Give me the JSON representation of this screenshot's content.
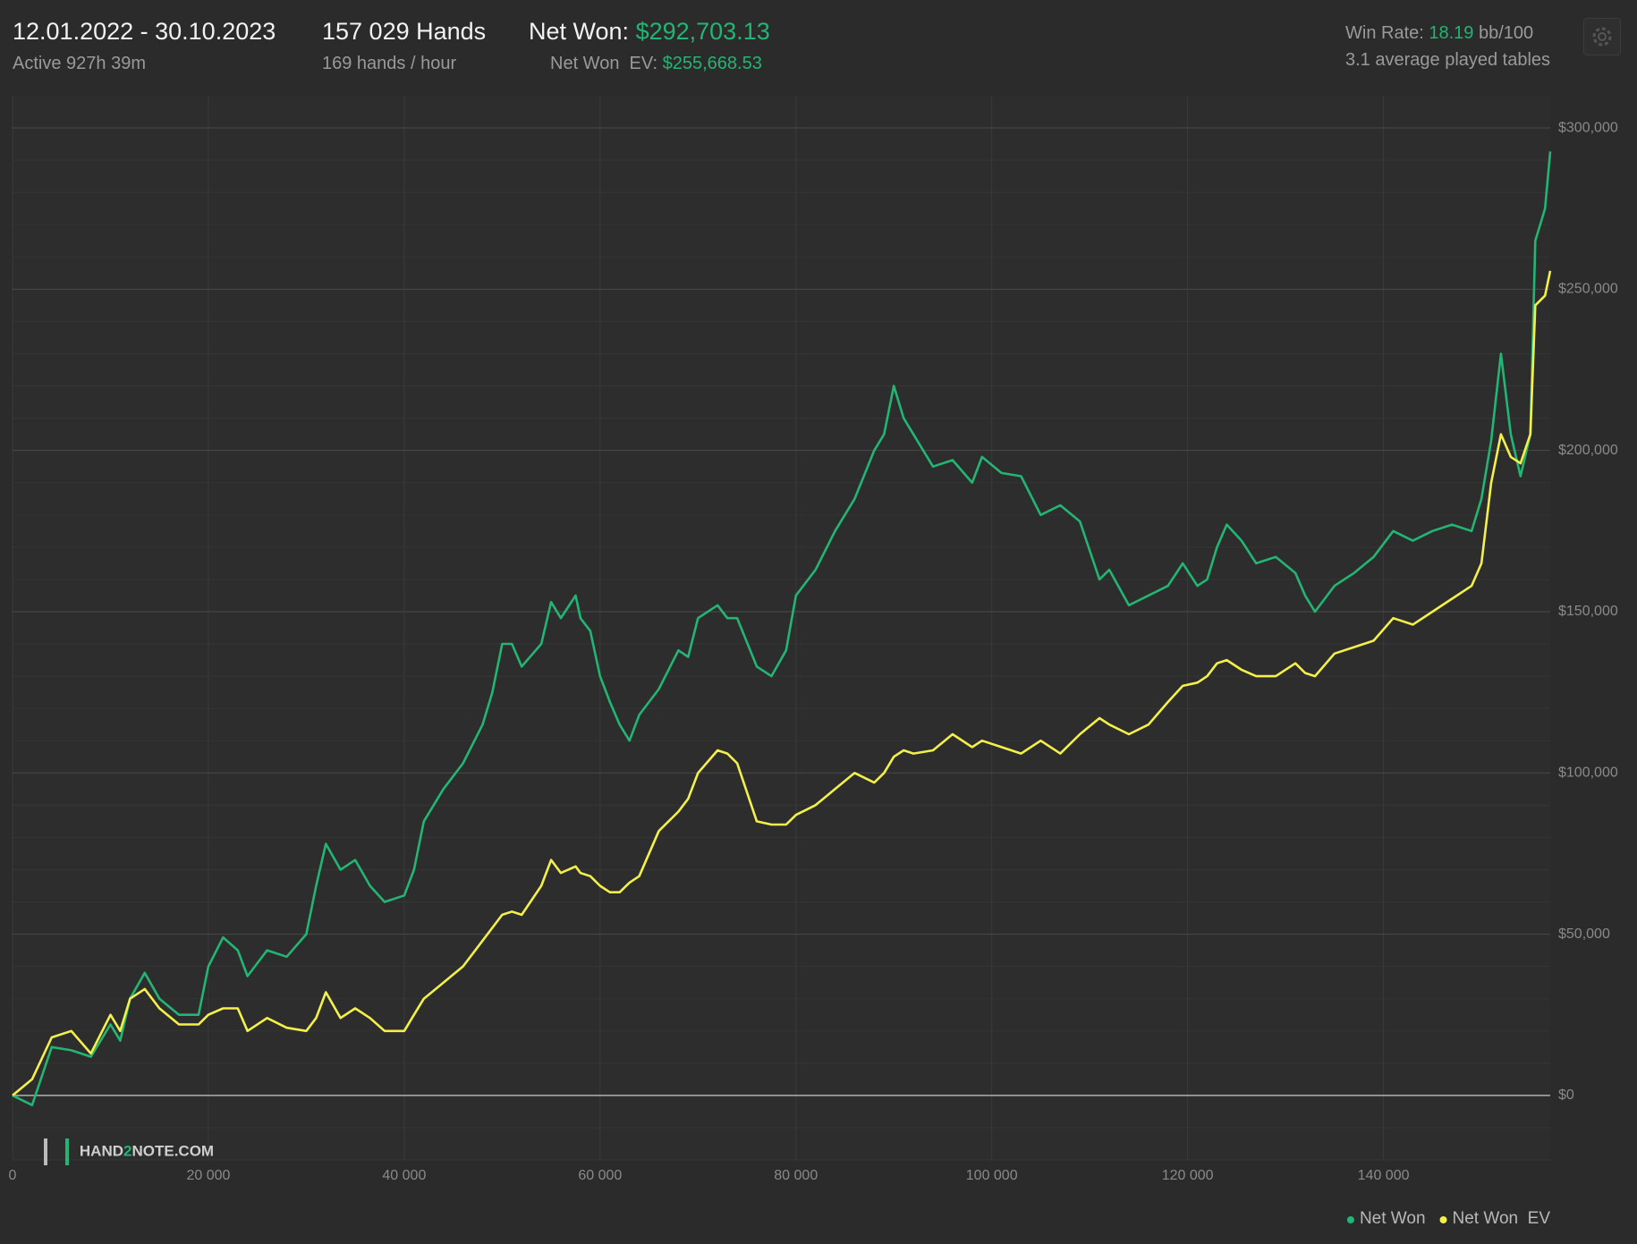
{
  "header": {
    "date_range": "12.01.2022 - 30.10.2023",
    "active": "Active 927h 39m",
    "hands": "157 029 Hands",
    "hands_per_hour": "169 hands / hour",
    "net_won_label": "Net Won:",
    "net_won_value": "$292,703.13",
    "net_won_ev_label": "Net Won  EV:",
    "net_won_ev_value": "$255,668.53",
    "win_rate_label": "Win Rate:",
    "win_rate_value": "18.19",
    "win_rate_unit": "bb/100",
    "tables": "3.1 average played tables",
    "logo": [
      "HAND",
      "2",
      "NOTE.COM"
    ]
  },
  "chart_data": {
    "type": "line",
    "x": [
      0,
      2000,
      4000,
      6000,
      8000,
      10000,
      11000,
      12000,
      13500,
      15000,
      17000,
      19000,
      20000,
      21500,
      23000,
      24000,
      26000,
      28000,
      30000,
      31000,
      32000,
      33500,
      35000,
      36500,
      38000,
      40000,
      41000,
      42000,
      44000,
      46000,
      48000,
      49000,
      50000,
      51000,
      52000,
      54000,
      55000,
      56000,
      57500,
      58000,
      59000,
      60000,
      61000,
      62000,
      63000,
      64000,
      66000,
      68000,
      69000,
      70000,
      72000,
      73000,
      74000,
      76000,
      77500,
      79000,
      80000,
      82000,
      84000,
      86000,
      88000,
      89000,
      90000,
      91000,
      92000,
      94000,
      96000,
      98000,
      99000,
      101000,
      103000,
      105000,
      107000,
      109000,
      111000,
      112000,
      114000,
      116000,
      118000,
      119500,
      121000,
      122000,
      123000,
      124000,
      125500,
      127000,
      129000,
      131000,
      132000,
      133000,
      135000,
      137000,
      139000,
      141000,
      143000,
      145000,
      147000,
      149000,
      150000,
      151000,
      152000,
      153000,
      154000,
      155000,
      155500,
      156500,
      157029
    ],
    "series": [
      {
        "name": "Net Won",
        "color": "#22b573",
        "values": [
          0,
          -3000,
          15000,
          14000,
          12000,
          22000,
          17000,
          30000,
          38000,
          30000,
          25000,
          25000,
          40000,
          49000,
          45000,
          37000,
          45000,
          43000,
          50000,
          65000,
          78000,
          70000,
          73000,
          65000,
          60000,
          62000,
          70000,
          85000,
          95000,
          103000,
          115000,
          125000,
          140000,
          140000,
          133000,
          140000,
          153000,
          148000,
          155000,
          148000,
          144000,
          130000,
          122000,
          115000,
          110000,
          118000,
          126000,
          138000,
          136000,
          148000,
          152000,
          148000,
          148000,
          133000,
          130000,
          138000,
          155000,
          163000,
          175000,
          185000,
          200000,
          205000,
          220000,
          210000,
          205000,
          195000,
          197000,
          190000,
          198000,
          193000,
          192000,
          180000,
          183000,
          178000,
          160000,
          163000,
          152000,
          155000,
          158000,
          165000,
          158000,
          160000,
          170000,
          177000,
          172000,
          165000,
          167000,
          162000,
          155000,
          150000,
          158000,
          162000,
          167000,
          175000,
          172000,
          175000,
          177000,
          175000,
          185000,
          203000,
          230000,
          205000,
          192000,
          205000,
          265000,
          275000,
          292703.13
        ]
      },
      {
        "name": "Net Won  EV",
        "color": "#f4f04a",
        "values": [
          0,
          5000,
          18000,
          20000,
          13000,
          25000,
          20000,
          30000,
          33000,
          27000,
          22000,
          22000,
          25000,
          27000,
          27000,
          20000,
          24000,
          21000,
          20000,
          24000,
          32000,
          24000,
          27000,
          24000,
          20000,
          20000,
          25000,
          30000,
          35000,
          40000,
          48000,
          52000,
          56000,
          57000,
          56000,
          65000,
          73000,
          69000,
          71000,
          69000,
          68000,
          65000,
          63000,
          63000,
          66000,
          68000,
          82000,
          88000,
          92000,
          100000,
          107000,
          106000,
          103000,
          85000,
          84000,
          84000,
          87000,
          90000,
          95000,
          100000,
          97000,
          100000,
          105000,
          107000,
          106000,
          107000,
          112000,
          108000,
          110000,
          108000,
          106000,
          110000,
          106000,
          112000,
          117000,
          115000,
          112000,
          115000,
          122000,
          127000,
          128000,
          130000,
          134000,
          135000,
          132000,
          130000,
          130000,
          134000,
          131000,
          130000,
          137000,
          139000,
          141000,
          148000,
          146000,
          150000,
          154000,
          158000,
          165000,
          190000,
          205000,
          198000,
          196000,
          205000,
          245000,
          248000,
          255668.53
        ]
      }
    ],
    "xlim": [
      0,
      157029
    ],
    "ylim": [
      -20000,
      310000
    ],
    "xticks": [
      0,
      {
        "value": 20000,
        "label": "20 000"
      },
      {
        "value": 40000,
        "label": "40 000"
      },
      {
        "value": 60000,
        "label": "60 000"
      },
      {
        "value": 80000,
        "label": "80 000"
      },
      {
        "value": 100000,
        "label": "100 000"
      },
      {
        "value": 120000,
        "label": "120 000"
      },
      {
        "value": 140000,
        "label": "140 000"
      }
    ],
    "yticks": [
      {
        "value": 0,
        "label": "$0"
      },
      {
        "value": 50000,
        "label": "$50,000"
      },
      {
        "value": 100000,
        "label": "$100,000"
      },
      {
        "value": 150000,
        "label": "$150,000"
      },
      {
        "value": 200000,
        "label": "$200,000"
      },
      {
        "value": 250000,
        "label": "$250,000"
      },
      {
        "value": 300000,
        "label": "$300,000"
      }
    ],
    "grid": true,
    "legend": "bottom-right"
  }
}
